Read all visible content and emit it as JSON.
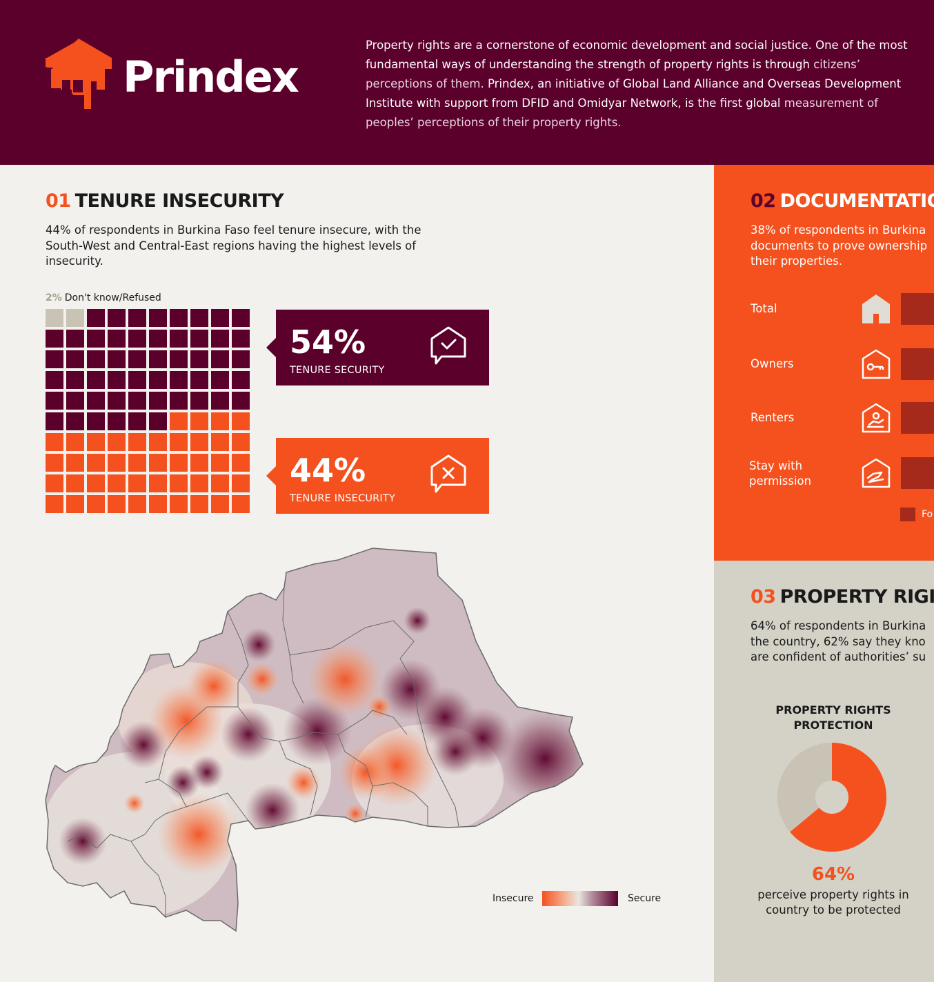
{
  "brand": {
    "name": "Prindex"
  },
  "intro": {
    "part1": "Property rights are a cornerstone of economic development and social justice. One of the most fundamental ways of understanding the strength of property rights is through",
    "part2": "citizens’ perceptions of them.",
    "part3": "Prindex, an initiative of Global Land Alliance and Overseas Development Institute with support from DFID and Omidyar Network, is the first global",
    "part4": "measurement of peoples’ perceptions of their property rights."
  },
  "section1": {
    "number": "01",
    "title": "TENURE INSECURITY",
    "description": "44% of respondents in Burkina Faso feel tenure insecure, with the South-West and Central-East regions having the highest levels of insecurity.",
    "dont_know": {
      "pct": "2%",
      "label": "Don't know/Refused",
      "value": 2
    },
    "security": {
      "pct": "54%",
      "label": "TENURE SECURITY",
      "value": 54
    },
    "insecurity": {
      "pct": "44%",
      "label": "TENURE INSECURITY",
      "value": 44
    },
    "colors": {
      "dont_know": "#c9c3b6",
      "secure": "#5b002b",
      "insecure": "#f4511e"
    },
    "map_legend": {
      "left": "Insecure",
      "right": "Secure"
    }
  },
  "section2": {
    "number": "02",
    "title": "DOCUMENTATIO",
    "description_lines": [
      "38% of respondents in Burkina",
      "documents to prove ownership",
      "their properties."
    ],
    "rows": [
      {
        "label": "Total",
        "icon": "house-icon"
      },
      {
        "label": "Owners",
        "icon": "house-key-icon"
      },
      {
        "label": "Renters",
        "icon": "house-person-icon"
      },
      {
        "label": "Stay with permission",
        "icon": "house-hand-icon"
      }
    ],
    "legend_label": "Fo"
  },
  "section3": {
    "number": "03",
    "title": "PROPERTY RIGI",
    "description_lines": [
      "64% of respondents in Burkina",
      "the country, 62% say they kno",
      "are confident of authorities’ su"
    ],
    "chart_title": "PROPERTY RIGHTS PROTECTION",
    "big_value": "64%",
    "caption": "perceive property rights in country to be protected",
    "chart_data": {
      "type": "pie",
      "title": "PROPERTY RIGHTS PROTECTION",
      "values": [
        64,
        36
      ],
      "colors": [
        "#f4511e",
        "#c9c3b6"
      ]
    }
  }
}
